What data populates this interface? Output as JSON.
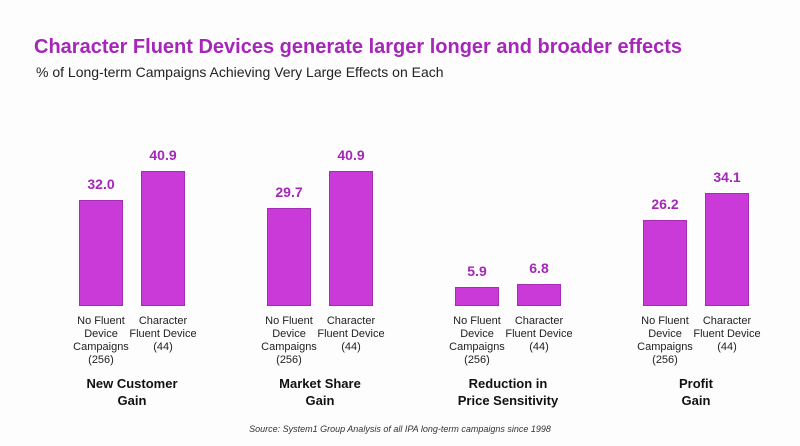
{
  "chart_data": {
    "type": "bar",
    "title": "Character Fluent Devices generate larger longer and broader effects",
    "subtitle": "% of Long-term Campaigns Achieving Very Large Effects on Each",
    "categories": [
      "New Customer\nGain",
      "Market Share\nGain",
      "Reduction in\nPrice Sensitivity",
      "Profit\nGain"
    ],
    "series": [
      {
        "name": "No Fluent\nDevice\nCampaigns\n(256)",
        "color": "#c93ad8",
        "values": [
          32.0,
          29.7,
          5.9,
          26.2
        ],
        "value_labels": [
          "32.0",
          "29.7",
          "5.9",
          "26.2"
        ]
      },
      {
        "name": "Character\nFluent Device\n(44)",
        "color": "#c93ad8",
        "values": [
          40.9,
          40.9,
          6.8,
          34.1
        ],
        "value_labels": [
          "40.9",
          "40.9",
          "6.8",
          "34.1"
        ]
      }
    ],
    "source": "Source: System1 Group Analysis of all IPA long-term campaigns since 1998"
  }
}
